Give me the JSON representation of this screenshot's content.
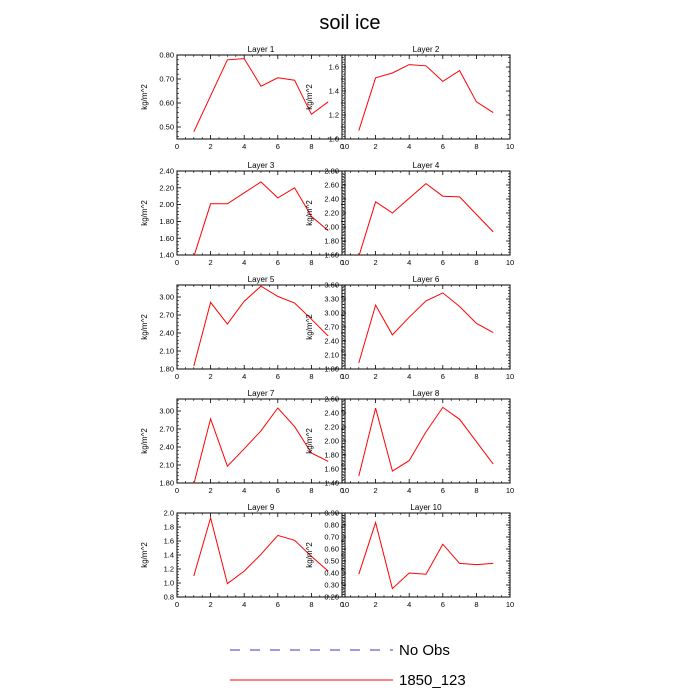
{
  "title": "soil ice",
  "chart_data": [
    {
      "type": "line",
      "title": "Layer 1",
      "ylabel": "kg/m^2",
      "xlim": [
        0,
        10
      ],
      "ylim": [
        0.45,
        0.8
      ],
      "xticks": [
        "0",
        "2",
        "4",
        "6",
        "8",
        "10"
      ],
      "yticks": [
        "0.50",
        "0.60",
        "0.70",
        "0.80"
      ],
      "ytick_values": [
        0.5,
        0.6,
        0.7,
        0.8
      ],
      "x": [
        1,
        2,
        3,
        4,
        5,
        6,
        7,
        8,
        9
      ],
      "series": [
        {
          "name": "1850_123",
          "values": [
            0.48,
            0.63,
            0.78,
            0.785,
            0.67,
            0.705,
            0.695,
            0.553,
            0.605
          ]
        }
      ]
    },
    {
      "type": "line",
      "title": "Layer 2",
      "ylabel": "kg/m^2",
      "xlim": [
        0,
        10
      ],
      "ylim": [
        1.0,
        1.7
      ],
      "xticks": [
        "0",
        "2",
        "4",
        "6",
        "8",
        "10"
      ],
      "yticks": [
        "1.0",
        "1.2",
        "1.4",
        "1.6"
      ],
      "ytick_values": [
        1.0,
        1.2,
        1.4,
        1.6
      ],
      "x": [
        1,
        2,
        3,
        4,
        5,
        6,
        7,
        8,
        9
      ],
      "series": [
        {
          "name": "1850_123",
          "values": [
            1.07,
            1.51,
            1.55,
            1.62,
            1.61,
            1.48,
            1.57,
            1.31,
            1.22
          ]
        }
      ]
    },
    {
      "type": "line",
      "title": "Layer 3",
      "ylabel": "kg/m^2",
      "xlim": [
        0,
        10
      ],
      "ylim": [
        1.4,
        2.4
      ],
      "xticks": [
        "0",
        "2",
        "4",
        "6",
        "8",
        "10"
      ],
      "yticks": [
        "1.40",
        "1.60",
        "1.80",
        "2.00",
        "2.20",
        "2.40"
      ],
      "ytick_values": [
        1.4,
        1.6,
        1.8,
        2.0,
        2.2,
        2.4
      ],
      "x": [
        1,
        2,
        3,
        4,
        5,
        6,
        7,
        8,
        9
      ],
      "series": [
        {
          "name": "1850_123",
          "values": [
            1.38,
            2.01,
            2.01,
            2.14,
            2.27,
            2.08,
            2.2,
            1.86,
            1.69
          ]
        }
      ]
    },
    {
      "type": "line",
      "title": "Layer 4",
      "ylabel": "kg/m^2",
      "xlim": [
        0,
        10
      ],
      "ylim": [
        1.6,
        2.8
      ],
      "xticks": [
        "0",
        "2",
        "4",
        "6",
        "8",
        "10"
      ],
      "yticks": [
        "1.60",
        "1.80",
        "2.00",
        "2.20",
        "2.40",
        "2.60",
        "2.80"
      ],
      "ytick_values": [
        1.6,
        1.8,
        2.0,
        2.2,
        2.4,
        2.6,
        2.8
      ],
      "x": [
        1,
        2,
        3,
        4,
        5,
        6,
        7,
        8,
        9
      ],
      "series": [
        {
          "name": "1850_123",
          "values": [
            1.58,
            2.36,
            2.2,
            2.41,
            2.62,
            2.44,
            2.43,
            2.18,
            1.93
          ]
        }
      ]
    },
    {
      "type": "line",
      "title": "Layer 5",
      "ylabel": "kg/m^2",
      "xlim": [
        0,
        10
      ],
      "ylim": [
        1.8,
        3.2
      ],
      "xticks": [
        "0",
        "2",
        "4",
        "6",
        "8",
        "10"
      ],
      "yticks": [
        "1.80",
        "2.10",
        "2.40",
        "2.70",
        "3.00"
      ],
      "ytick_values": [
        1.8,
        2.1,
        2.4,
        2.7,
        3.0
      ],
      "x": [
        1,
        2,
        3,
        4,
        5,
        6,
        7,
        8,
        9
      ],
      "series": [
        {
          "name": "1850_123",
          "values": [
            1.85,
            2.91,
            2.55,
            2.93,
            3.18,
            3.01,
            2.9,
            2.63,
            2.35
          ]
        }
      ]
    },
    {
      "type": "line",
      "title": "Layer 6",
      "ylabel": "kg/m^2",
      "xlim": [
        0,
        10
      ],
      "ylim": [
        1.8,
        3.6
      ],
      "xticks": [
        "0",
        "2",
        "4",
        "6",
        "8",
        "10"
      ],
      "yticks": [
        "1.80",
        "2.10",
        "2.40",
        "2.70",
        "3.00",
        "3.30",
        "3.60"
      ],
      "ytick_values": [
        1.8,
        2.1,
        2.4,
        2.7,
        3.0,
        3.3,
        3.6
      ],
      "x": [
        1,
        2,
        3,
        4,
        5,
        6,
        7,
        8,
        9
      ],
      "series": [
        {
          "name": "1850_123",
          "values": [
            1.93,
            3.17,
            2.53,
            2.91,
            3.26,
            3.43,
            3.14,
            2.78,
            2.58
          ]
        }
      ]
    },
    {
      "type": "line",
      "title": "Layer 7",
      "ylabel": "kg/m^2",
      "xlim": [
        0,
        10
      ],
      "ylim": [
        1.8,
        3.2
      ],
      "xticks": [
        "0",
        "2",
        "4",
        "6",
        "8",
        "10"
      ],
      "yticks": [
        "1.80",
        "2.10",
        "2.40",
        "2.70",
        "3.00"
      ],
      "ytick_values": [
        1.8,
        2.1,
        2.4,
        2.7,
        3.0
      ],
      "x": [
        1,
        2,
        3,
        4,
        5,
        6,
        7,
        8,
        9
      ],
      "series": [
        {
          "name": "1850_123",
          "values": [
            1.78,
            2.87,
            2.08,
            2.37,
            2.67,
            3.05,
            2.74,
            2.3,
            2.16
          ]
        }
      ]
    },
    {
      "type": "line",
      "title": "Layer 8",
      "ylabel": "kg/m^2",
      "xlim": [
        0,
        10
      ],
      "ylim": [
        1.4,
        2.6
      ],
      "xticks": [
        "0",
        "2",
        "4",
        "6",
        "8",
        "10"
      ],
      "yticks": [
        "1.40",
        "1.60",
        "1.80",
        "2.00",
        "2.20",
        "2.40",
        "2.60"
      ],
      "ytick_values": [
        1.4,
        1.6,
        1.8,
        2.0,
        2.2,
        2.4,
        2.6
      ],
      "x": [
        1,
        2,
        3,
        4,
        5,
        6,
        7,
        8,
        9
      ],
      "series": [
        {
          "name": "1850_123",
          "values": [
            1.5,
            2.47,
            1.57,
            1.72,
            2.13,
            2.48,
            2.31,
            1.99,
            1.67
          ]
        }
      ]
    },
    {
      "type": "line",
      "title": "Layer 9",
      "ylabel": "kg/m^2",
      "xlim": [
        0,
        10
      ],
      "ylim": [
        0.8,
        2.0
      ],
      "xticks": [
        "0",
        "2",
        "4",
        "6",
        "8",
        "10"
      ],
      "yticks": [
        "0.8",
        "1.0",
        "1.2",
        "1.4",
        "1.6",
        "1.8",
        "2.0"
      ],
      "ytick_values": [
        0.8,
        1.0,
        1.2,
        1.4,
        1.6,
        1.8,
        2.0
      ],
      "x": [
        1,
        2,
        3,
        4,
        5,
        6,
        7,
        8,
        9
      ],
      "series": [
        {
          "name": "1850_123",
          "values": [
            1.1,
            1.93,
            0.99,
            1.17,
            1.41,
            1.68,
            1.61,
            1.38,
            1.17
          ]
        }
      ]
    },
    {
      "type": "line",
      "title": "Layer 10",
      "ylabel": "kg/m^2",
      "xlim": [
        0,
        10
      ],
      "ylim": [
        0.2,
        0.9
      ],
      "xticks": [
        "0",
        "2",
        "4",
        "6",
        "8",
        "10"
      ],
      "yticks": [
        "0.20",
        "0.30",
        "0.40",
        "0.50",
        "0.60",
        "0.70",
        "0.80",
        "0.90"
      ],
      "ytick_values": [
        0.2,
        0.3,
        0.4,
        0.5,
        0.6,
        0.7,
        0.8,
        0.9
      ],
      "x": [
        1,
        2,
        3,
        4,
        5,
        6,
        7,
        8,
        9
      ],
      "series": [
        {
          "name": "1850_123",
          "values": [
            0.39,
            0.82,
            0.27,
            0.4,
            0.39,
            0.64,
            0.48,
            0.47,
            0.48
          ]
        }
      ]
    }
  ],
  "legend": [
    {
      "label": "No Obs",
      "color": "#3b3bb8",
      "dash": "dashed"
    },
    {
      "label": "1850_123",
      "color": "#ff0000",
      "dash": "solid"
    }
  ]
}
